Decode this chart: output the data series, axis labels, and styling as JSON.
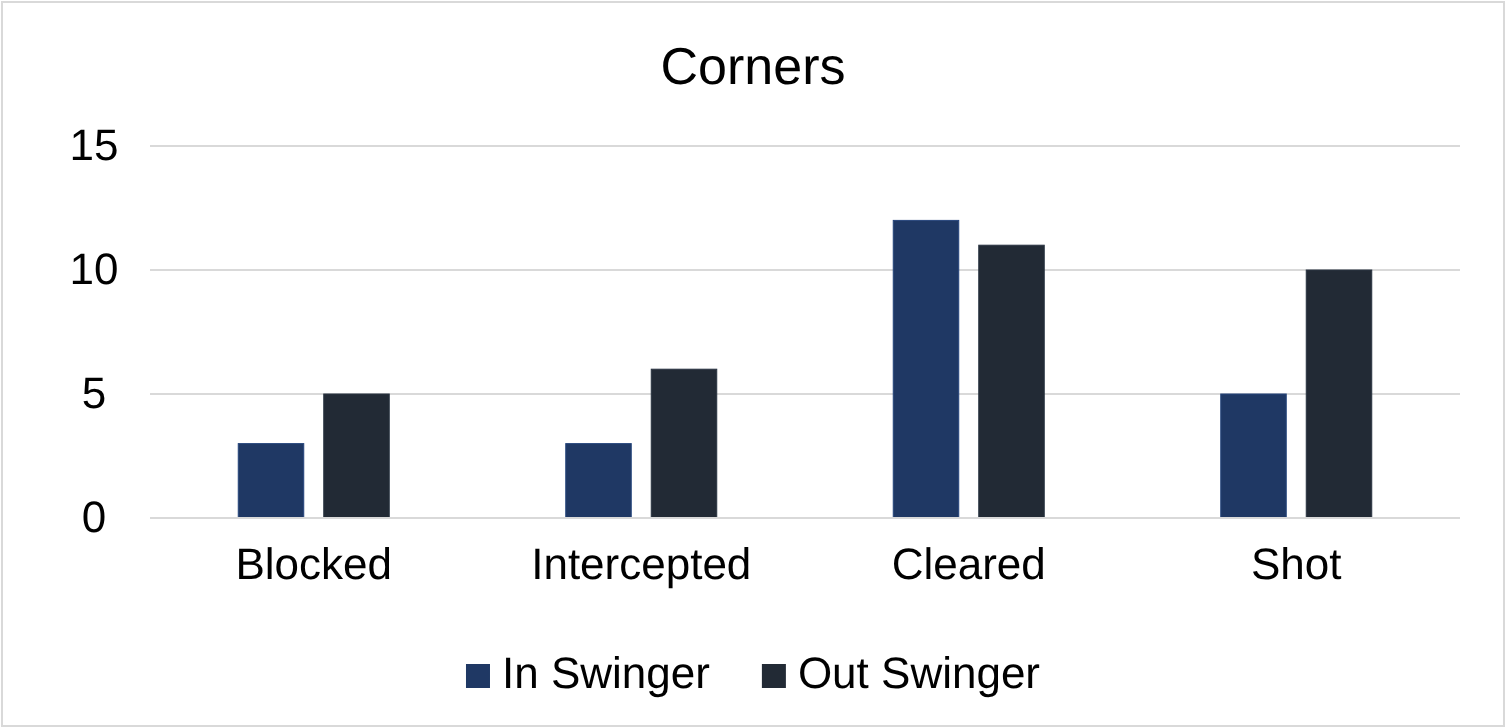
{
  "chart_data": {
    "type": "bar",
    "title": "Corners",
    "categories": [
      "Blocked",
      "Intercepted",
      "Cleared",
      "Shot"
    ],
    "series": [
      {
        "name": "In Swinger",
        "color": "#1f3864",
        "values": [
          3,
          3,
          12,
          5
        ]
      },
      {
        "name": "Out Swinger",
        "color": "#222a35",
        "values": [
          5,
          6,
          11,
          10
        ]
      }
    ],
    "ylim": [
      0,
      15
    ],
    "yticks": [
      0,
      5,
      10,
      15
    ],
    "grid": "y",
    "legend": "bottom"
  }
}
